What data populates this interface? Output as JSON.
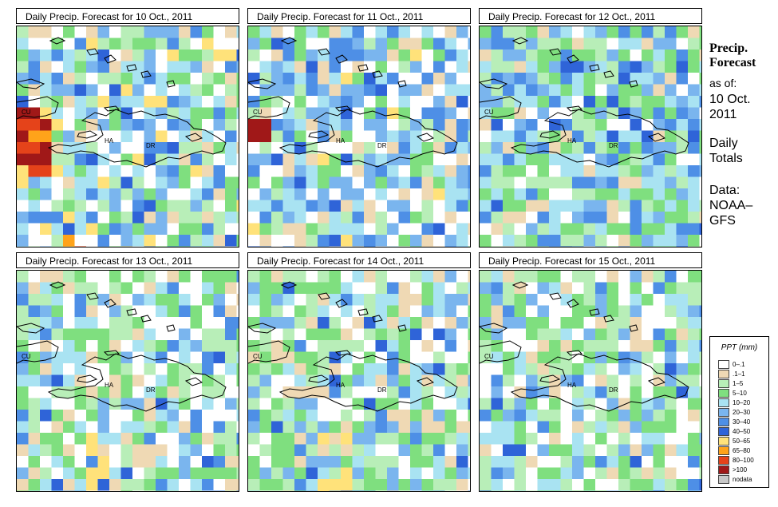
{
  "panels": [
    {
      "title": "Daily Precip. Forecast for  10 Oct., 2011",
      "scheme": "heavy_west"
    },
    {
      "title": "Daily Precip. Forecast for  11 Oct., 2011",
      "scheme": "mid"
    },
    {
      "title": "Daily Precip. Forecast for  12 Oct., 2011",
      "scheme": "blue_green"
    },
    {
      "title": "Daily Precip. Forecast for  13 Oct., 2011",
      "scheme": "light_south"
    },
    {
      "title": "Daily Precip. Forecast for  14 Oct., 2011",
      "scheme": "light_south"
    },
    {
      "title": "Daily Precip. Forecast for  15 Oct., 2011",
      "scheme": "light_west"
    }
  ],
  "map_labels": {
    "cuba": "CU",
    "haiti": "HA",
    "dominican_republic": "DR"
  },
  "sidebar": {
    "title_line1": "Precip.",
    "title_line2": "Forecast",
    "asof_label": "as of:",
    "date_line1": "10 Oct.",
    "date_line2": "2011",
    "totals_line1": "Daily",
    "totals_line2": "Totals",
    "data_line1": "Data:",
    "data_line2": "NOAA–",
    "data_line3": "GFS"
  },
  "legend": {
    "title": "PPT (mm)",
    "items": [
      {
        "label": "0–.1",
        "color": "#ffffff"
      },
      {
        "label": ".1–1",
        "color": "#efd9b4"
      },
      {
        "label": "1–5",
        "color": "#b8eeb8"
      },
      {
        "label": "5–10",
        "color": "#7fdf7f"
      },
      {
        "label": "10–20",
        "color": "#a9e3f2"
      },
      {
        "label": "20–30",
        "color": "#7ab5ee"
      },
      {
        "label": "30–40",
        "color": "#4e8fe6"
      },
      {
        "label": "40–50",
        "color": "#2f64d8"
      },
      {
        "label": "50–65",
        "color": "#ffe27a"
      },
      {
        "label": "65–80",
        "color": "#ffa31a"
      },
      {
        "label": "80–100",
        "color": "#e5431a"
      },
      {
        "label": ">100",
        "color": "#a01818"
      },
      {
        "label": "nodata",
        "color": "#c8c8c8"
      }
    ]
  }
}
